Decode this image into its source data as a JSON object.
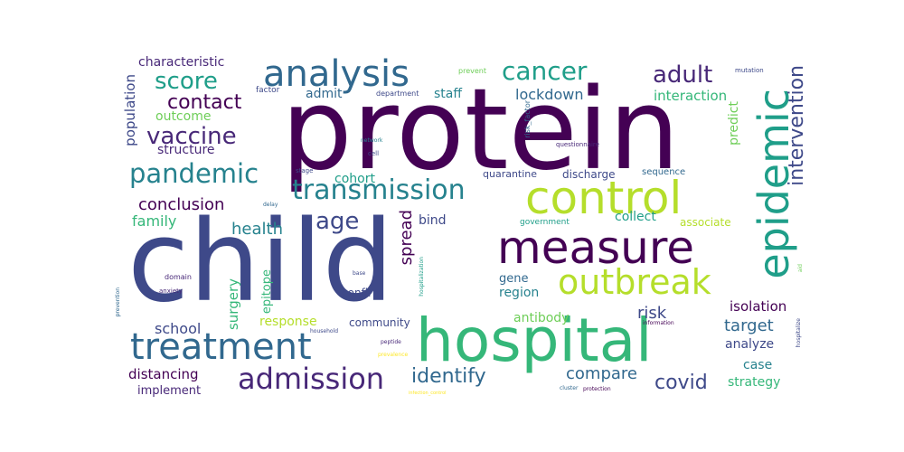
{
  "palette": {
    "deep_purple": "#440154",
    "purple": "#482878",
    "indigo": "#3e4989",
    "blue": "#31688e",
    "teal": "#26828e",
    "teal_green": "#1f9e89",
    "green": "#35b779",
    "light_green": "#6ece58",
    "lime": "#b5de2b",
    "yellow": "#fde725"
  },
  "words": [
    {
      "text": "protein"
    },
    {
      "text": "child"
    },
    {
      "text": "hospital"
    },
    {
      "text": "measure"
    },
    {
      "text": "control"
    },
    {
      "text": "epidemic"
    },
    {
      "text": "treatment"
    },
    {
      "text": "analysis"
    },
    {
      "text": "outbreak"
    },
    {
      "text": "transmission"
    },
    {
      "text": "admission"
    },
    {
      "text": "pandemic"
    },
    {
      "text": "cancer"
    },
    {
      "text": "adult"
    },
    {
      "text": "vaccine"
    },
    {
      "text": "score"
    },
    {
      "text": "age"
    },
    {
      "text": "intervention"
    },
    {
      "text": "identify"
    },
    {
      "text": "contact"
    },
    {
      "text": "covid"
    },
    {
      "text": "conclusion"
    },
    {
      "text": "health"
    },
    {
      "text": "family"
    },
    {
      "text": "compare"
    },
    {
      "text": "target"
    },
    {
      "text": "spread"
    },
    {
      "text": "lockdown"
    },
    {
      "text": "school"
    },
    {
      "text": "risk"
    },
    {
      "text": "characteristic"
    },
    {
      "text": "population"
    },
    {
      "text": "distancing"
    },
    {
      "text": "interaction"
    },
    {
      "text": "staff"
    },
    {
      "text": "admit"
    },
    {
      "text": "region"
    },
    {
      "text": "predict"
    },
    {
      "text": "isolation"
    },
    {
      "text": "response"
    },
    {
      "text": "surgery"
    },
    {
      "text": "epitope"
    },
    {
      "text": "bind"
    },
    {
      "text": "case"
    },
    {
      "text": "antibody"
    },
    {
      "text": "analyze"
    },
    {
      "text": "strategy"
    },
    {
      "text": "outcome"
    },
    {
      "text": "structure"
    },
    {
      "text": "cohort"
    },
    {
      "text": "collect"
    },
    {
      "text": "quarantine"
    },
    {
      "text": "discharge"
    },
    {
      "text": "gene"
    },
    {
      "text": "implement"
    },
    {
      "text": "community"
    },
    {
      "text": "confirm"
    },
    {
      "text": "associate"
    },
    {
      "text": "sequence"
    },
    {
      "text": "government"
    },
    {
      "text": "risk_factor"
    },
    {
      "text": "questionnaire"
    },
    {
      "text": "factor"
    },
    {
      "text": "department"
    },
    {
      "text": "prevent"
    },
    {
      "text": "mutation"
    },
    {
      "text": "network"
    },
    {
      "text": "cell"
    },
    {
      "text": "stage"
    },
    {
      "text": "delay"
    },
    {
      "text": "domain"
    },
    {
      "text": "anxiety"
    },
    {
      "text": "base"
    },
    {
      "text": "hospitalization"
    },
    {
      "text": "prevention"
    },
    {
      "text": "household"
    },
    {
      "text": "peptide"
    },
    {
      "text": "cluster"
    },
    {
      "text": "protection"
    },
    {
      "text": "information"
    },
    {
      "text": "hospitalize"
    },
    {
      "text": "aid"
    },
    {
      "text": "prevalence"
    },
    {
      "text": "infection_control"
    }
  ]
}
